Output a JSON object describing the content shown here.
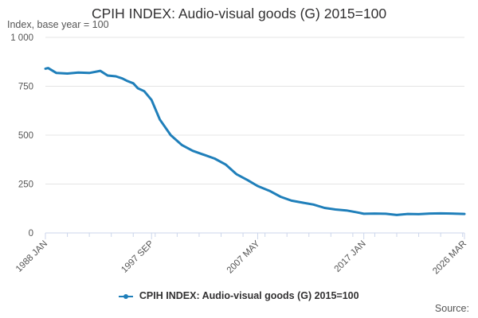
{
  "header": {
    "title": "CPIH INDEX: Audio-visual goods (G) 2015=100",
    "y_unit": "Index, base year = 100"
  },
  "legend": {
    "label": "CPIH INDEX: Audio-visual goods (G) 2015=100"
  },
  "footer": {
    "source": "Source:"
  },
  "colors": {
    "series": "#1f7fba",
    "grid": "#e4e4e4",
    "axis": "#ccd6eb"
  },
  "chart_data": {
    "type": "line",
    "title": "CPIH INDEX: Audio-visual goods (G) 2015=100",
    "ylabel": "Index, base year = 100",
    "xlabel": "",
    "ylim": [
      0,
      1000
    ],
    "y_ticks": [
      0,
      250,
      500,
      750,
      1000
    ],
    "y_tick_labels": [
      "0",
      "250",
      "500",
      "750",
      "1 000"
    ],
    "x_range": [
      "1988-01",
      "2026-03"
    ],
    "x_tick_labels": [
      {
        "date": "1988-01",
        "label": "1988 JAN"
      },
      {
        "date": "1997-09",
        "label": "1997 SEP"
      },
      {
        "date": "2007-05",
        "label": "2007 MAY"
      },
      {
        "date": "2017-01",
        "label": "2017 JAN"
      },
      {
        "date": "2026-03",
        "label": "2026 MAR"
      }
    ],
    "grid": true,
    "legend_position": "bottom",
    "series": [
      {
        "name": "CPIH INDEX: Audio-visual goods (G) 2015=100",
        "x": [
          "1988-01",
          "1988-04",
          "1989-01",
          "1990-01",
          "1991-01",
          "1992-01",
          "1993-01",
          "1993-09",
          "1994-06",
          "1995-01",
          "1995-06",
          "1996-01",
          "1996-06",
          "1997-01",
          "1997-09",
          "1998-06",
          "1999-06",
          "2000-06",
          "2001-06",
          "2002-06",
          "2003-06",
          "2004-06",
          "2005-06",
          "2006-06",
          "2007-05",
          "2008-06",
          "2009-06",
          "2010-06",
          "2011-06",
          "2012-06",
          "2013-06",
          "2014-06",
          "2015-06",
          "2016-06",
          "2017-01",
          "2018-01",
          "2019-01",
          "2020-01",
          "2021-01",
          "2022-01",
          "2023-01",
          "2024-01",
          "2025-01",
          "2026-03"
        ],
        "y": [
          840,
          843,
          818,
          815,
          820,
          818,
          829,
          805,
          801,
          790,
          778,
          765,
          740,
          725,
          680,
          580,
          500,
          450,
          420,
          400,
          380,
          350,
          300,
          270,
          240,
          215,
          185,
          165,
          155,
          145,
          128,
          120,
          115,
          105,
          98,
          99,
          98,
          92,
          97,
          96,
          99,
          100,
          99,
          97
        ]
      }
    ]
  }
}
